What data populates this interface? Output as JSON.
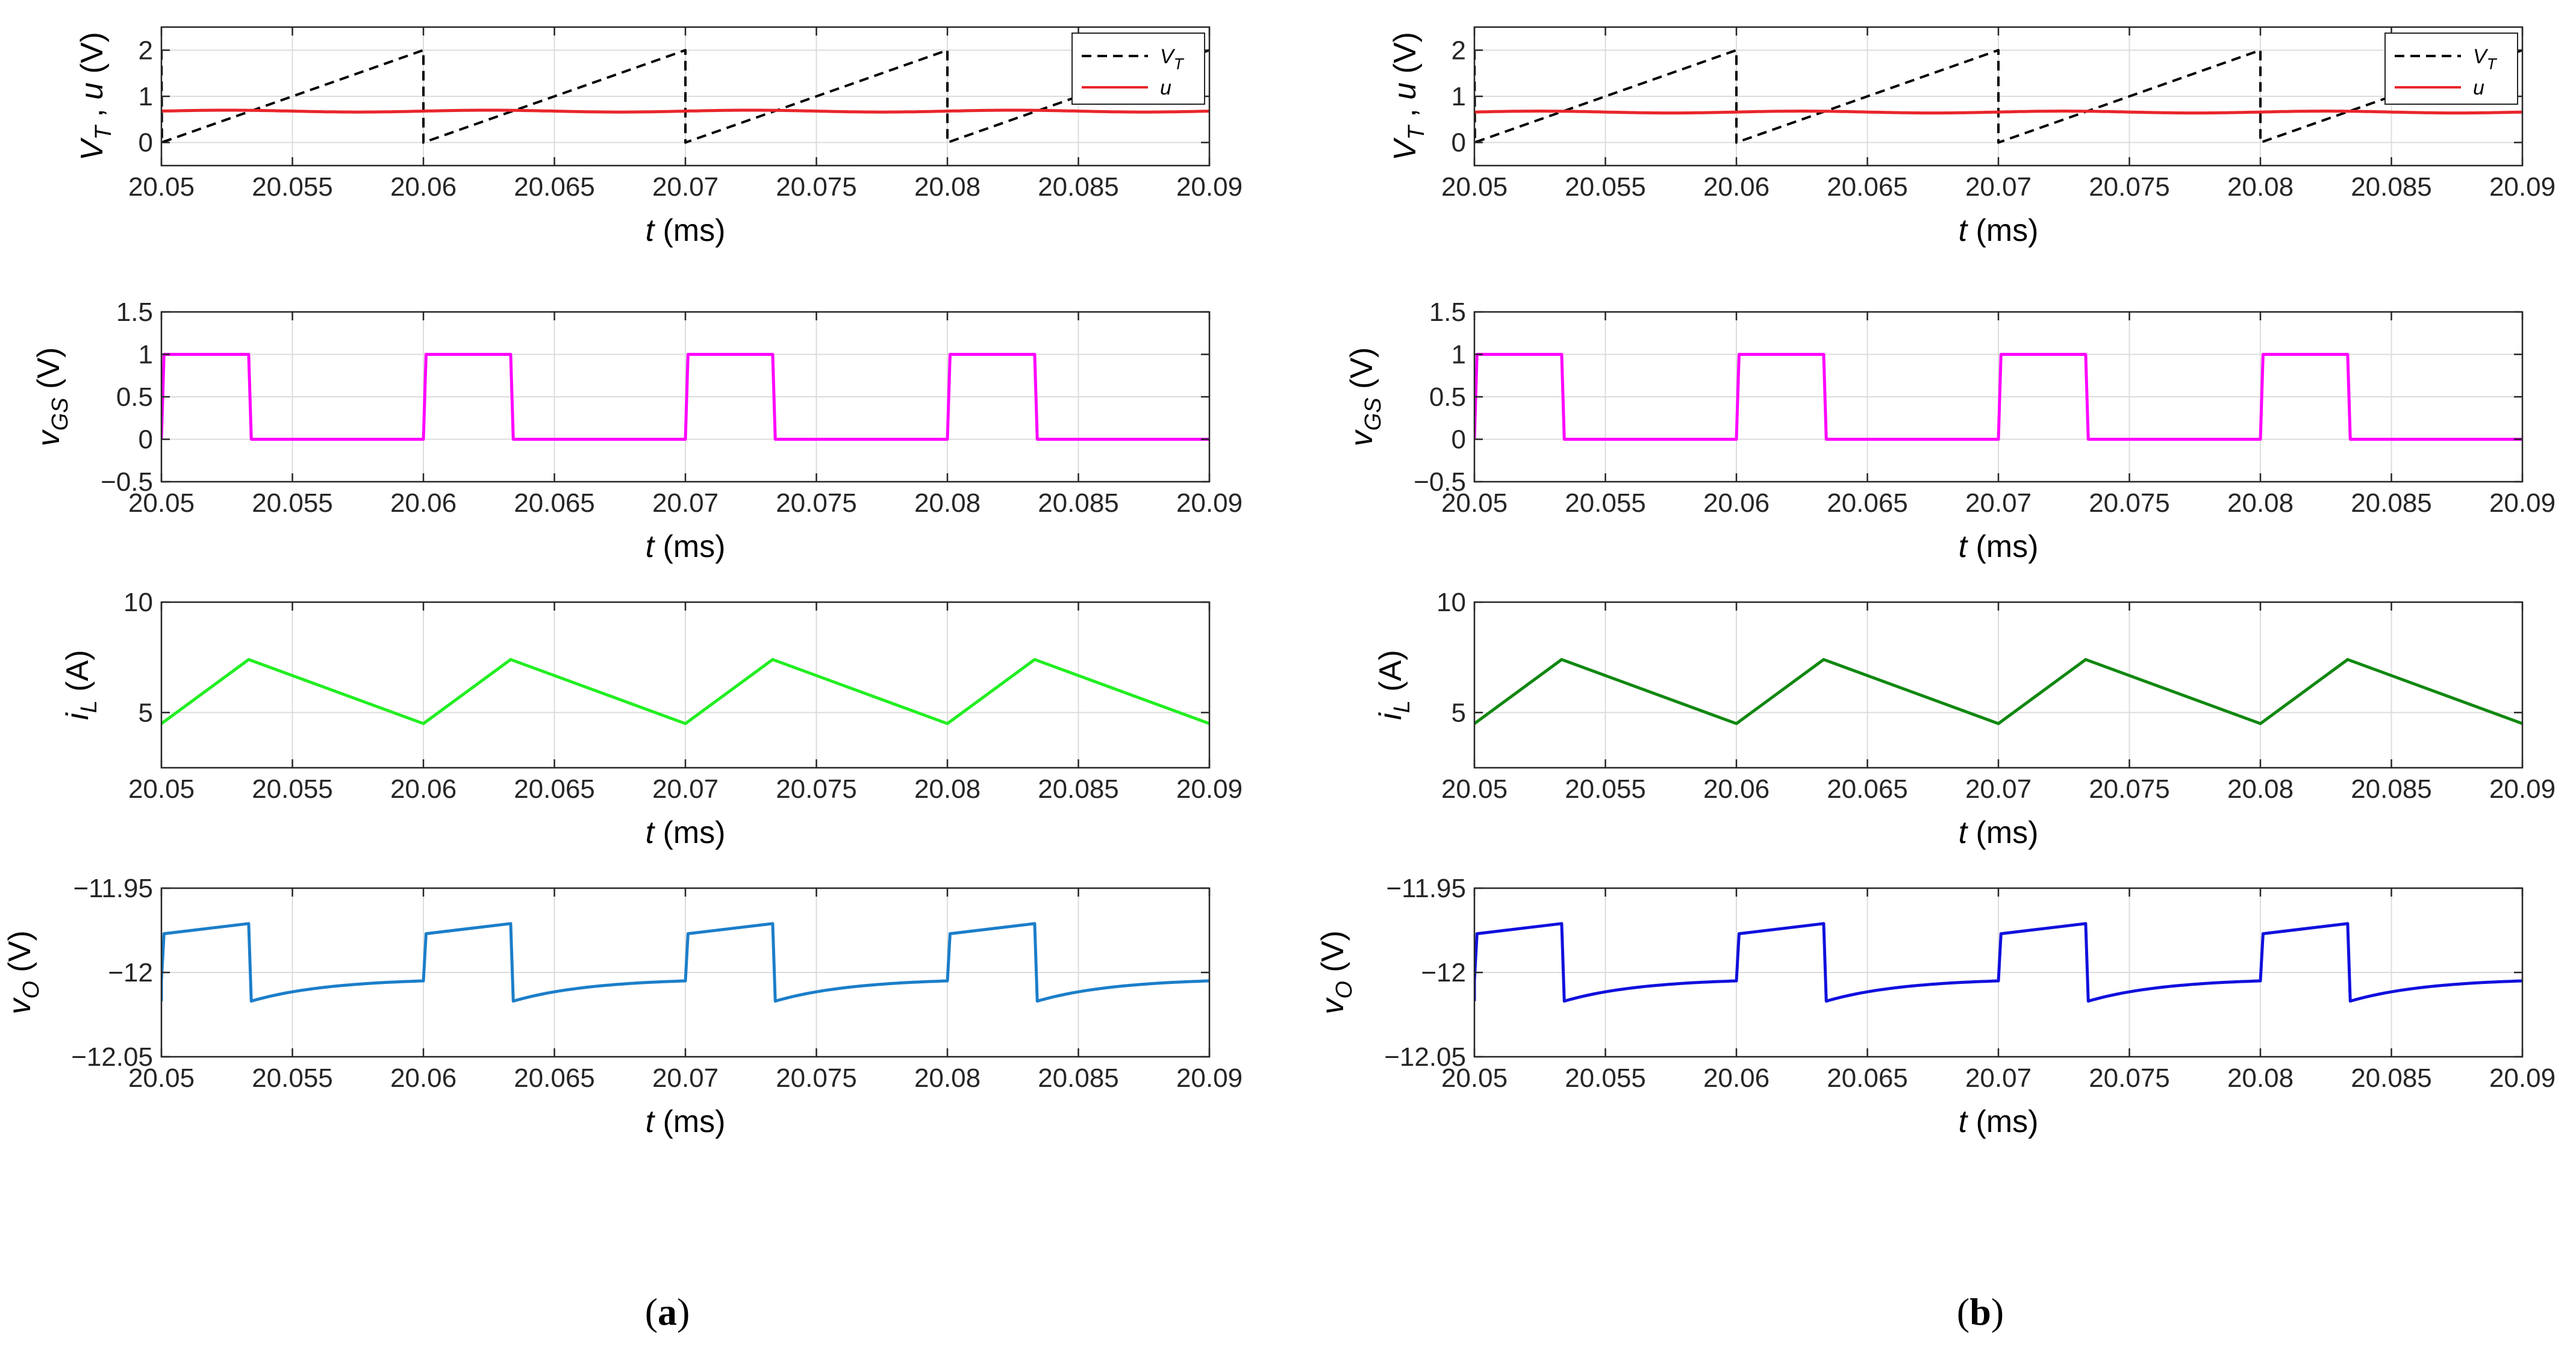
{
  "panel_labels": [
    "(a)",
    "(b)"
  ],
  "colors": {
    "vt": "#000000",
    "u": "#e8262b",
    "vgs": "#ff00ff",
    "il_a": "#22ee22",
    "il_b": "#118811",
    "vo_a": "#1b7ec9",
    "vo_b": "#1010dd",
    "grid": "#dcdcdc",
    "axis": "#262626"
  },
  "chart_data": [
    {
      "id": "a1",
      "panel": "a",
      "type": "line",
      "xlabel": "t (ms)",
      "xlabel_italic": "t",
      "xlabel_unit": "(ms)",
      "ylabel": "V_T , u (V)",
      "ylabel_parts": [
        "V",
        "T",
        " ,  ",
        "u",
        " (V)"
      ],
      "xlim": [
        20.05,
        20.09
      ],
      "ylim": [
        -0.5,
        2.5
      ],
      "xticks": [
        20.05,
        20.055,
        20.06,
        20.065,
        20.07,
        20.075,
        20.08,
        20.085,
        20.09
      ],
      "xtick_labels": [
        "20.05",
        "20.055",
        "20.06",
        "20.065",
        "20.07",
        "20.075",
        "20.08",
        "20.085",
        "20.09"
      ],
      "yticks": [
        0,
        1,
        2
      ],
      "ytick_labels": [
        "0",
        "1",
        "2"
      ],
      "legend": {
        "position": "top-right",
        "entries": [
          {
            "main": "V",
            "sub": "T",
            "style": "dashed"
          },
          {
            "main": "u",
            "sub": "",
            "style": "solid"
          }
        ]
      },
      "series": [
        {
          "name": "V_T",
          "color_key": "vt",
          "dashed": true,
          "kind": "sawtooth",
          "period": 0.01,
          "start": 20.05,
          "min": 0.0,
          "max": 2.0
        },
        {
          "name": "u",
          "color_key": "u",
          "dashed": false,
          "kind": "ripple",
          "base": 0.68,
          "amp": 0.02
        }
      ]
    },
    {
      "id": "a2",
      "panel": "a",
      "type": "line",
      "xlabel": "t (ms)",
      "xlabel_italic": "t",
      "xlabel_unit": "(ms)",
      "ylabel": "v_GS (V)",
      "ylabel_parts": [
        "v",
        "GS",
        "",
        "",
        " (V)"
      ],
      "xlim": [
        20.05,
        20.09
      ],
      "ylim": [
        -0.5,
        1.5
      ],
      "xticks": [
        20.05,
        20.055,
        20.06,
        20.065,
        20.07,
        20.075,
        20.08,
        20.085,
        20.09
      ],
      "xtick_labels": [
        "20.05",
        "20.055",
        "20.06",
        "20.065",
        "20.07",
        "20.075",
        "20.08",
        "20.085",
        "20.09"
      ],
      "yticks": [
        -0.5,
        0,
        0.5,
        1,
        1.5
      ],
      "ytick_labels": [
        "−0.5",
        "0",
        "0.5",
        "1",
        "1.5"
      ],
      "series": [
        {
          "name": "v_GS",
          "color_key": "vgs",
          "kind": "pulse",
          "period": 0.01,
          "start": 20.05,
          "high": 1.0,
          "low": 0.0,
          "duty": 0.333
        }
      ]
    },
    {
      "id": "a3",
      "panel": "a",
      "type": "line",
      "xlabel": "t (ms)",
      "xlabel_italic": "t",
      "xlabel_unit": "(ms)",
      "ylabel": "i_L (A)",
      "ylabel_parts": [
        "i",
        "L",
        "",
        "",
        " (A)"
      ],
      "xlim": [
        20.05,
        20.09
      ],
      "ylim": [
        2.5,
        10
      ],
      "xticks": [
        20.05,
        20.055,
        20.06,
        20.065,
        20.07,
        20.075,
        20.08,
        20.085,
        20.09
      ],
      "xtick_labels": [
        "20.05",
        "20.055",
        "20.06",
        "20.065",
        "20.07",
        "20.075",
        "20.08",
        "20.085",
        "20.09"
      ],
      "yticks": [
        5,
        10
      ],
      "ytick_labels": [
        "5",
        "10"
      ],
      "series": [
        {
          "name": "i_L",
          "color_key": "il_a",
          "kind": "triangle",
          "period": 0.01,
          "start": 20.05,
          "min": 4.5,
          "max": 7.4,
          "duty": 0.333
        }
      ]
    },
    {
      "id": "a4",
      "panel": "a",
      "type": "line",
      "xlabel": "t (ms)",
      "xlabel_italic": "t",
      "xlabel_unit": "(ms)",
      "ylabel": "v_O (V)",
      "ylabel_parts": [
        "v",
        "O",
        "",
        "",
        " (V)"
      ],
      "xlim": [
        20.05,
        20.09
      ],
      "ylim": [
        -12.05,
        -11.95
      ],
      "xticks": [
        20.05,
        20.055,
        20.06,
        20.065,
        20.07,
        20.075,
        20.08,
        20.085,
        20.09
      ],
      "xtick_labels": [
        "20.05",
        "20.055",
        "20.06",
        "20.065",
        "20.07",
        "20.075",
        "20.08",
        "20.085",
        "20.09"
      ],
      "yticks": [
        -12.05,
        -12,
        -11.95
      ],
      "ytick_labels": [
        "−12.05",
        "−12",
        "−11.95"
      ],
      "series": [
        {
          "name": "v_O",
          "color_key": "vo_a",
          "kind": "output",
          "period": 0.01,
          "start": 20.05,
          "duty": 0.333,
          "on_start": -11.977,
          "on_end": -11.971,
          "off_start": -12.017,
          "off_end": -12.005
        }
      ]
    },
    {
      "id": "b1",
      "panel": "b",
      "type": "line",
      "xlabel": "t (ms)",
      "xlabel_italic": "t",
      "xlabel_unit": "(ms)",
      "ylabel": "V_T , u (V)",
      "ylabel_parts": [
        "V",
        "T",
        " ,  ",
        "u",
        " (V)"
      ],
      "xlim": [
        20.05,
        20.09
      ],
      "ylim": [
        -0.5,
        2.5
      ],
      "xticks": [
        20.05,
        20.055,
        20.06,
        20.065,
        20.07,
        20.075,
        20.08,
        20.085,
        20.09
      ],
      "xtick_labels": [
        "20.05",
        "20.055",
        "20.06",
        "20.065",
        "20.07",
        "20.075",
        "20.08",
        "20.085",
        "20.09"
      ],
      "yticks": [
        0,
        1,
        2
      ],
      "ytick_labels": [
        "0",
        "1",
        "2"
      ],
      "legend": {
        "position": "top-right",
        "entries": [
          {
            "main": "V",
            "sub": "T",
            "style": "dashed"
          },
          {
            "main": "u",
            "sub": "",
            "style": "solid"
          }
        ]
      },
      "series": [
        {
          "name": "V_T",
          "color_key": "vt",
          "dashed": true,
          "kind": "sawtooth",
          "period": 0.01,
          "start": 20.05,
          "min": 0.0,
          "max": 2.0
        },
        {
          "name": "u",
          "color_key": "u",
          "dashed": false,
          "kind": "ripple",
          "base": 0.66,
          "amp": 0.02
        }
      ]
    },
    {
      "id": "b2",
      "panel": "b",
      "type": "line",
      "xlabel": "t (ms)",
      "xlabel_italic": "t",
      "xlabel_unit": "(ms)",
      "ylabel": "v_GS (V)",
      "ylabel_parts": [
        "v",
        "GS",
        "",
        "",
        " (V)"
      ],
      "xlim": [
        20.05,
        20.09
      ],
      "ylim": [
        -0.5,
        1.5
      ],
      "xticks": [
        20.05,
        20.055,
        20.06,
        20.065,
        20.07,
        20.075,
        20.08,
        20.085,
        20.09
      ],
      "xtick_labels": [
        "20.05",
        "20.055",
        "20.06",
        "20.065",
        "20.07",
        "20.075",
        "20.08",
        "20.085",
        "20.09"
      ],
      "yticks": [
        -0.5,
        0,
        0.5,
        1,
        1.5
      ],
      "ytick_labels": [
        "−0.5",
        "0",
        "0.5",
        "1",
        "1.5"
      ],
      "series": [
        {
          "name": "v_GS",
          "color_key": "vgs",
          "kind": "pulse",
          "period": 0.01,
          "start": 20.05,
          "high": 1.0,
          "low": 0.0,
          "duty": 0.333
        }
      ]
    },
    {
      "id": "b3",
      "panel": "b",
      "type": "line",
      "xlabel": "t (ms)",
      "xlabel_italic": "t",
      "xlabel_unit": "(ms)",
      "ylabel": "i_L (A)",
      "ylabel_parts": [
        "i",
        "L",
        "",
        "",
        " (A)"
      ],
      "xlim": [
        20.05,
        20.09
      ],
      "ylim": [
        2.5,
        10
      ],
      "xticks": [
        20.05,
        20.055,
        20.06,
        20.065,
        20.07,
        20.075,
        20.08,
        20.085,
        20.09
      ],
      "xtick_labels": [
        "20.05",
        "20.055",
        "20.06",
        "20.065",
        "20.07",
        "20.075",
        "20.08",
        "20.085",
        "20.09"
      ],
      "yticks": [
        5,
        10
      ],
      "ytick_labels": [
        "5",
        "10"
      ],
      "series": [
        {
          "name": "i_L",
          "color_key": "il_b",
          "kind": "triangle",
          "period": 0.01,
          "start": 20.05,
          "min": 4.5,
          "max": 7.4,
          "duty": 0.333
        }
      ]
    },
    {
      "id": "b4",
      "panel": "b",
      "type": "line",
      "xlabel": "t (ms)",
      "xlabel_italic": "t",
      "xlabel_unit": "(ms)",
      "ylabel": "v_O (V)",
      "ylabel_parts": [
        "v",
        "O",
        "",
        "",
        " (V)"
      ],
      "xlim": [
        20.05,
        20.09
      ],
      "ylim": [
        -12.05,
        -11.95
      ],
      "xticks": [
        20.05,
        20.055,
        20.06,
        20.065,
        20.07,
        20.075,
        20.08,
        20.085,
        20.09
      ],
      "xtick_labels": [
        "20.05",
        "20.055",
        "20.06",
        "20.065",
        "20.07",
        "20.075",
        "20.08",
        "20.085",
        "20.09"
      ],
      "yticks": [
        -12.05,
        -12,
        -11.95
      ],
      "ytick_labels": [
        "−12.05",
        "−12",
        "−11.95"
      ],
      "series": [
        {
          "name": "v_O",
          "color_key": "vo_b",
          "kind": "output",
          "period": 0.01,
          "start": 20.05,
          "duty": 0.333,
          "on_start": -11.977,
          "on_end": -11.971,
          "off_start": -12.017,
          "off_end": -12.005
        }
      ]
    }
  ]
}
